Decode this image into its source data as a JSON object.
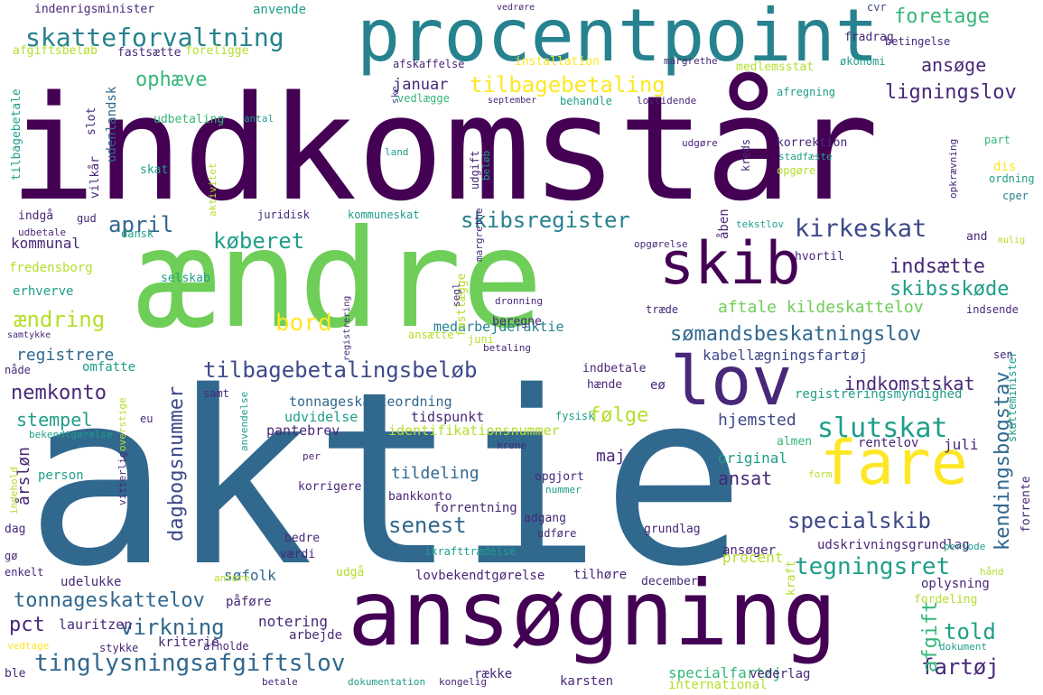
{
  "colors": {
    "background": "#ffffff",
    "palette": {
      "dark_purple": "#440154",
      "purple": "#482878",
      "indigo": "#3e4989",
      "blue": "#31688e",
      "steel_blue": "#26828e",
      "teal": "#1f9e89",
      "green": "#35b779",
      "light_green": "#6ece58",
      "yellow_green": "#b5de2b",
      "yellow": "#fde725"
    }
  },
  "words": [
    "indkomstår",
    "aktie",
    "ændre",
    "procentpoint",
    "ansøgning",
    "fare",
    "lov",
    "skib",
    "skatteforvaltning",
    "foretage",
    "ophæve",
    "tilbagebetaling",
    "ligningslov",
    "ansøge",
    "januar",
    "skibsregister",
    "april",
    "kirkeskat",
    "køberet",
    "indsætte",
    "skibsskøde",
    "kommunal",
    "sømandsbeskatningslov",
    "aftale kildeskattelov",
    "ændring",
    "bord",
    "tilbagebetalingsbeløb",
    "kabellægningsfartøj",
    "nemkonto",
    "dagbogsnummer",
    "kendingsbogstav",
    "følge",
    "slutskat",
    "indkomstskat",
    "stempel",
    "hjemsted",
    "specialskib",
    "senest",
    "tegningsret",
    "tonnageskattelov",
    "virkning",
    "tinglysningsafgiftslov",
    "told",
    "fartøj",
    "registrere",
    "medarbejderaktie",
    "identifikationsnummer",
    "tonnageskatteordning",
    "tildeling",
    "ansat",
    "maj",
    "specialfartøj",
    "notering",
    "afgift",
    "ansøger",
    "original",
    "udskrivningsgrundlag",
    "procent",
    "indenrigsminister",
    "anvende",
    "vedrøre",
    "cvr",
    "fradrag",
    "betingelse",
    "afgiftsbeløb",
    "fastsætte",
    "foreligge",
    "installation",
    "margrethe",
    "økonomi",
    "medlemsstat",
    "afskaffelse",
    "vedlægge",
    "afregning",
    "udbetaling",
    "antal",
    "udenlandsk",
    "september",
    "behandle",
    "lovtidende",
    "korrektion",
    "opgøre",
    "dis",
    "ordning",
    "cper",
    "part",
    "kreds",
    "stadfæste",
    "opkrævning",
    "udgøre",
    "skat",
    "land",
    "vilkår",
    "indgå",
    "gud",
    "dansk",
    "juridisk",
    "kommuneskat",
    "udbetale",
    "fredensborg",
    "erhverve",
    "selskab",
    "dronning",
    "træde",
    "indsende",
    "åben",
    "tekstlov",
    "hvortil",
    "mulig",
    "opgørelse",
    "registreringsmyndighed",
    "sen",
    "omfatte",
    "indbetale",
    "hænde",
    "eø",
    "samt",
    "udvidelse",
    "tidspunkt",
    "pantebrev",
    "fysisk",
    "eu",
    "juni",
    "beregne",
    "betaling",
    "ansætte",
    "fastlægge",
    "nåde",
    "samtykke",
    "bekendtgørelse",
    "person",
    "korrigere",
    "årsløn",
    "bankkonto",
    "opgjort",
    "forrentning",
    "adgang",
    "udføre",
    "grundlag",
    "ikrafttrædelse",
    "dag",
    "værdi",
    "bedre",
    "udelukke",
    "søfolk",
    "udgå",
    "lovbekendtgørelse",
    "tilhøre",
    "december",
    "oplysning",
    "fordeling",
    "pct",
    "lauritzen",
    "kriterie",
    "arbejde",
    "afholde",
    "stykke",
    "række",
    "karsten",
    "vederlag",
    "international",
    "betale",
    "dokumentation",
    "kongelig",
    "ble",
    "dokument",
    "kraft",
    "enkelt",
    "anføre",
    "påføre",
    "periode",
    "hånd",
    "almen",
    "rentelov",
    "juli",
    "form",
    "krone",
    "nummer",
    "skatteminister",
    "forrente",
    "vitterlig",
    "overstige",
    "registrering",
    "aktivitet",
    "segl",
    "margrethe",
    "beløb",
    "udgift",
    "indehold",
    "tilbagebetale",
    "slot",
    "vedtage",
    "ske",
    "per",
    "anvendelse",
    "gø",
    "and"
  ]
}
